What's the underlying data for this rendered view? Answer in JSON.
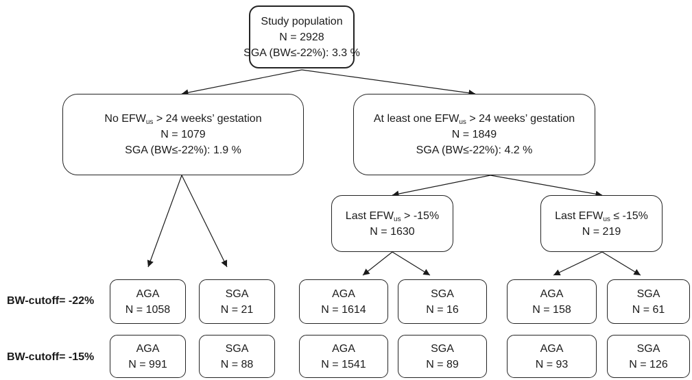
{
  "root": {
    "title": "Study population",
    "n": "N = 2928",
    "sga": "SGA (BW≤-22%): 3.3 %"
  },
  "left_group": {
    "pre": "No EFW",
    "sub": "us",
    "post": " > 24 weeks’ gestation",
    "n": "N = 1079",
    "sga": "SGA (BW≤-22%): 1.9 %"
  },
  "right_group": {
    "pre": "At least one EFW",
    "sub": "us",
    "post": " > 24 weeks’ gestation",
    "n": "N = 1849",
    "sga": "SGA (BW≤-22%): 4.2 %"
  },
  "sub_above": {
    "pre": "Last EFW",
    "sub": "us",
    "post": " > -15%",
    "n": "N = 1630"
  },
  "sub_below": {
    "pre": "Last EFW",
    "sub": "us",
    "post": " ≤ -15%",
    "n": "N = 219"
  },
  "row_labels": {
    "cutoff_22": "BW-cutoff= -22%",
    "cutoff_15": "BW-cutoff= -15%"
  },
  "leaves": {
    "cutoff_22": [
      {
        "label": "AGA",
        "n": "N = 1058"
      },
      {
        "label": "SGA",
        "n": "N = 21"
      },
      {
        "label": "AGA",
        "n": "N = 1614"
      },
      {
        "label": "SGA",
        "n": "N = 16"
      },
      {
        "label": "AGA",
        "n": "N = 158"
      },
      {
        "label": "SGA",
        "n": "N = 61"
      }
    ],
    "cutoff_15": [
      {
        "label": "AGA",
        "n": "N = 991"
      },
      {
        "label": "SGA",
        "n": "N = 88"
      },
      {
        "label": "AGA",
        "n": "N = 1541"
      },
      {
        "label": "SGA",
        "n": "N = 89"
      },
      {
        "label": "AGA",
        "n": "N = 93"
      },
      {
        "label": "SGA",
        "n": "N = 126"
      }
    ]
  }
}
